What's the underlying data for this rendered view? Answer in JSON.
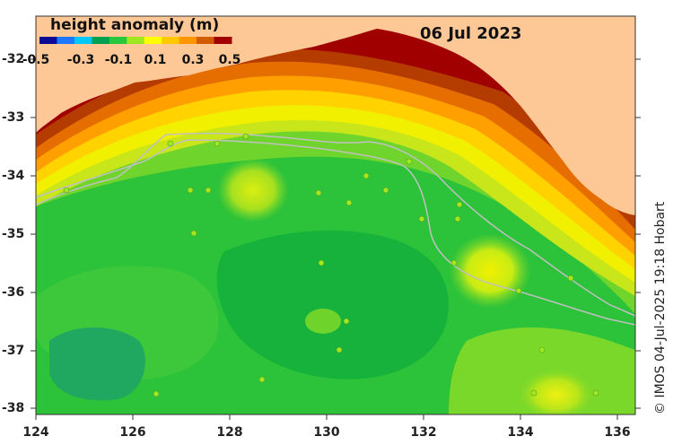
{
  "date_label": "06 Jul 2023",
  "colorbar": {
    "title": "height anomaly (m)",
    "ticks": [
      "-0.5",
      "-0.3",
      "-0.1",
      "0.1",
      "0.3",
      "0.5"
    ],
    "colors": [
      "#0a0a96",
      "#1e78ff",
      "#00c8ff",
      "#00a050",
      "#28c83c",
      "#a0e61e",
      "#ffff00",
      "#ffc800",
      "#ff9600",
      "#d25a00",
      "#a00000"
    ]
  },
  "credit": "© IMOS 04-Jul-2025 19:18 Hobart",
  "axes": {
    "x_ticks": [
      "124",
      "126",
      "128",
      "130",
      "132",
      "134",
      "136"
    ],
    "y_ticks": [
      "-32",
      "-33",
      "-34",
      "-35",
      "-36",
      "-37",
      "-38"
    ]
  },
  "colors": {
    "land": "#fec896",
    "ocean_base": "#28c040",
    "coast_band": "#a00000",
    "shelf_contour": "#c0c0c0"
  }
}
